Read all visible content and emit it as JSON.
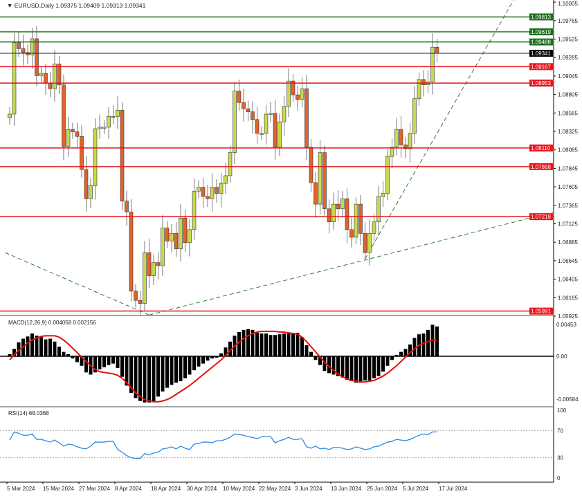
{
  "header": {
    "symbol": "EURUSD,Daily",
    "open": "1.09375",
    "high": "1.09409",
    "low": "1.09313",
    "close": "1.09341"
  },
  "macd_label": "MACD(12,26,9) 0.004058 0.002156",
  "rsi_label": "RSI(14) 68.0368",
  "colors": {
    "bull": "#c9d84a",
    "bear": "#e0622c",
    "support": "#e8141c",
    "resistance": "#1e6e1e",
    "current": "#1a1a6e",
    "trend": "#2e7d2e",
    "macd_signal": "#e01010",
    "rsi": "#2a8ae0"
  },
  "chart_data": [
    {
      "type": "candlestick",
      "title": "EURUSD,Daily",
      "ylim": [
        1.05925,
        1.10005
      ],
      "y_ticks": [
        "1.10005",
        "1.09765",
        "1.09525",
        "1.09285",
        "1.09045",
        "1.08805",
        "1.08565",
        "1.08325",
        "1.08085",
        "1.07845",
        "1.07605",
        "1.07365",
        "1.07125",
        "1.06885",
        "1.06645",
        "1.06405",
        "1.06165",
        "1.05925"
      ],
      "x_ticks": [
        {
          "label": "5 Mar 2024",
          "bar": 0
        },
        {
          "label": "15 Mar 2024",
          "bar": 8
        },
        {
          "label": "27 Mar 2024",
          "bar": 16
        },
        {
          "label": "8 Apr 2024",
          "bar": 24
        },
        {
          "label": "18 Apr 2024",
          "bar": 32
        },
        {
          "label": "30 Apr 2024",
          "bar": 40
        },
        {
          "label": "10 May 2024",
          "bar": 48
        },
        {
          "label": "22 May 2024",
          "bar": 56
        },
        {
          "label": "3 Jun 2024",
          "bar": 64
        },
        {
          "label": "13 Jun 2024",
          "bar": 72
        },
        {
          "label": "25 Jun 2024",
          "bar": 80
        },
        {
          "label": "5 Jul 2024",
          "bar": 88
        },
        {
          "label": "17 Jul 2024",
          "bar": 96
        }
      ],
      "first_open": 1.085,
      "closes": [
        1.0855,
        1.0948,
        1.094,
        1.0935,
        1.0932,
        1.0953,
        1.0905,
        1.0908,
        1.0895,
        1.0888,
        1.092,
        1.0893,
        1.0813,
        1.0835,
        1.0832,
        1.0826,
        1.0783,
        1.0745,
        1.0762,
        1.0836,
        1.0838,
        1.0838,
        1.0852,
        1.0852,
        1.086,
        1.0742,
        1.0728,
        1.0625,
        1.0613,
        1.0609,
        1.0675,
        1.0645,
        1.0662,
        1.0658,
        1.0707,
        1.069,
        1.07,
        1.068,
        1.072,
        1.0688,
        1.0705,
        1.0755,
        1.076,
        1.0748,
        1.0745,
        1.076,
        1.0752,
        1.0765,
        1.0775,
        1.0805,
        1.0885,
        1.087,
        1.0862,
        1.0858,
        1.0848,
        1.083,
        1.083,
        1.0855,
        1.0856,
        1.0812,
        1.0845,
        1.0865,
        1.0898,
        1.088,
        1.0874,
        1.0888,
        1.0812,
        1.0766,
        1.0738,
        1.0805,
        1.0732,
        1.0715,
        1.0738,
        1.0732,
        1.0745,
        1.0705,
        1.0695,
        1.0738,
        1.07,
        1.0675,
        1.07,
        1.0715,
        1.0748,
        1.0752,
        1.08,
        1.0812,
        1.0835,
        1.0815,
        1.081,
        1.083,
        1.0875,
        1.09,
        1.0893,
        1.0897,
        1.0942,
        1.09341
      ],
      "horizontal_levels": [
        {
          "price": 1.09813,
          "label": "1.09813",
          "kind": "resistance"
        },
        {
          "price": 1.09619,
          "label": "1.09619",
          "kind": "resistance"
        },
        {
          "price": 1.09488,
          "label": "1.09488",
          "kind": "resistance"
        },
        {
          "price": 1.09341,
          "label": "1.09341",
          "kind": "current"
        },
        {
          "price": 1.09167,
          "label": "1.09167",
          "kind": "support"
        },
        {
          "price": 1.08953,
          "label": "1.08953",
          "kind": "support"
        },
        {
          "price": 1.0811,
          "label": "1.08110",
          "kind": "support"
        },
        {
          "price": 1.07868,
          "label": "1.07868",
          "kind": "support"
        },
        {
          "price": 1.07218,
          "label": "1.07218",
          "kind": "support"
        },
        {
          "price": 1.05991,
          "label": "1.05991",
          "kind": "support"
        }
      ],
      "trendlines": [
        {
          "from": {
            "bar": -1,
            "price": 1.0675
          },
          "to": {
            "bar": 31,
            "price": 1.0594
          }
        },
        {
          "from": {
            "bar": 31,
            "price": 1.0594
          },
          "to": {
            "bar": 121,
            "price": 1.0728
          }
        },
        {
          "from": {
            "bar": 79,
            "price": 1.0667
          },
          "to": {
            "bar": 112,
            "price": 1.1003
          }
        }
      ]
    },
    {
      "type": "bar",
      "title": "MACD(12,26,9)",
      "ylim": [
        -0.00584,
        0.00453
      ],
      "y_ticks": [
        "0.00453",
        "0.00",
        "-0.00584"
      ],
      "unit_scale": 0.001,
      "histogram": [
        0.3,
        1.0,
        1.9,
        2.4,
        2.7,
        3.1,
        2.8,
        2.6,
        2.3,
        2.4,
        2.0,
        1.3,
        0.6,
        0.3,
        -0.3,
        -0.8,
        -1.3,
        -2.2,
        -2.5,
        -2.2,
        -1.8,
        -1.5,
        -1.2,
        -1.0,
        -1.6,
        -2.8,
        -4.0,
        -5.0,
        -5.7,
        -6.1,
        -6.3,
        -6.3,
        -6.2,
        -5.5,
        -4.8,
        -4.3,
        -3.9,
        -3.6,
        -3.4,
        -3.0,
        -2.5,
        -1.9,
        -1.4,
        -1.0,
        -0.6,
        -0.3,
        -0.2,
        0.4,
        1.2,
        2.0,
        2.8,
        3.3,
        3.6,
        3.7,
        3.6,
        3.2,
        3.1,
        3.1,
        2.9,
        2.9,
        3.0,
        3.1,
        3.1,
        3.2,
        3.2,
        2.6,
        1.5,
        0.6,
        -0.5,
        -1.2,
        -2.0,
        -2.3,
        -2.5,
        -2.7,
        -2.9,
        -3.2,
        -3.4,
        -3.6,
        -3.6,
        -3.3,
        -3.3,
        -3.0,
        -2.7,
        -2.1,
        -1.3,
        -0.5,
        0.2,
        0.6,
        1.0,
        1.6,
        2.5,
        3.0,
        3.1,
        3.6,
        4.3,
        4.058
      ],
      "signal": [
        -0.5,
        0.2,
        0.8,
        1.3,
        1.8,
        2.2,
        2.5,
        2.7,
        2.8,
        2.8,
        2.8,
        2.6,
        2.2,
        1.7,
        1.1,
        0.5,
        -0.1,
        -0.7,
        -1.3,
        -1.8,
        -2.1,
        -2.2,
        -2.3,
        -2.4,
        -2.6,
        -3.0,
        -3.6,
        -4.3,
        -5.0,
        -5.5,
        -5.9,
        -6.1,
        -6.2,
        -6.2,
        -6.1,
        -5.9,
        -5.6,
        -5.2,
        -4.8,
        -4.4,
        -4.0,
        -3.5,
        -3.0,
        -2.5,
        -2.0,
        -1.5,
        -1.0,
        -0.5,
        0.1,
        0.8,
        1.4,
        1.9,
        2.4,
        2.8,
        3.1,
        3.3,
        3.4,
        3.4,
        3.4,
        3.4,
        3.3,
        3.3,
        3.2,
        3.1,
        3.0,
        2.6,
        2.0,
        1.3,
        0.6,
        -0.1,
        -0.8,
        -1.4,
        -1.9,
        -2.4,
        -2.8,
        -3.1,
        -3.3,
        -3.4,
        -3.5,
        -3.5,
        -3.4,
        -3.3,
        -3.0,
        -2.7,
        -2.3,
        -1.8,
        -1.3,
        -0.7,
        -0.1,
        0.5,
        1.0,
        1.5,
        1.8,
        2.0,
        2.2,
        2.156
      ]
    },
    {
      "type": "line",
      "title": "RSI(14)",
      "ylim": [
        0,
        100
      ],
      "y_ticks": [
        "100",
        "70",
        "30",
        "0"
      ],
      "levels": [
        70,
        30
      ],
      "values": [
        56,
        68,
        66,
        63,
        63,
        65,
        57,
        57,
        55,
        53,
        56,
        52,
        47,
        50,
        49,
        46,
        44,
        43,
        47,
        53,
        53,
        53,
        54,
        54,
        42,
        38,
        33,
        30,
        29,
        29,
        36,
        34,
        37,
        38,
        43,
        44,
        46,
        43,
        47,
        44,
        42,
        50,
        51,
        53,
        53,
        52,
        55,
        55,
        57,
        60,
        65,
        64,
        63,
        61,
        60,
        58,
        61,
        61,
        61,
        52,
        55,
        57,
        60,
        57,
        57,
        58,
        46,
        44,
        47,
        43,
        44,
        42,
        45,
        45,
        44,
        42,
        43,
        46,
        44,
        42,
        43,
        46,
        47,
        50,
        53,
        54,
        57,
        56,
        55,
        57,
        60,
        63,
        65,
        64,
        68,
        68.04
      ]
    }
  ]
}
